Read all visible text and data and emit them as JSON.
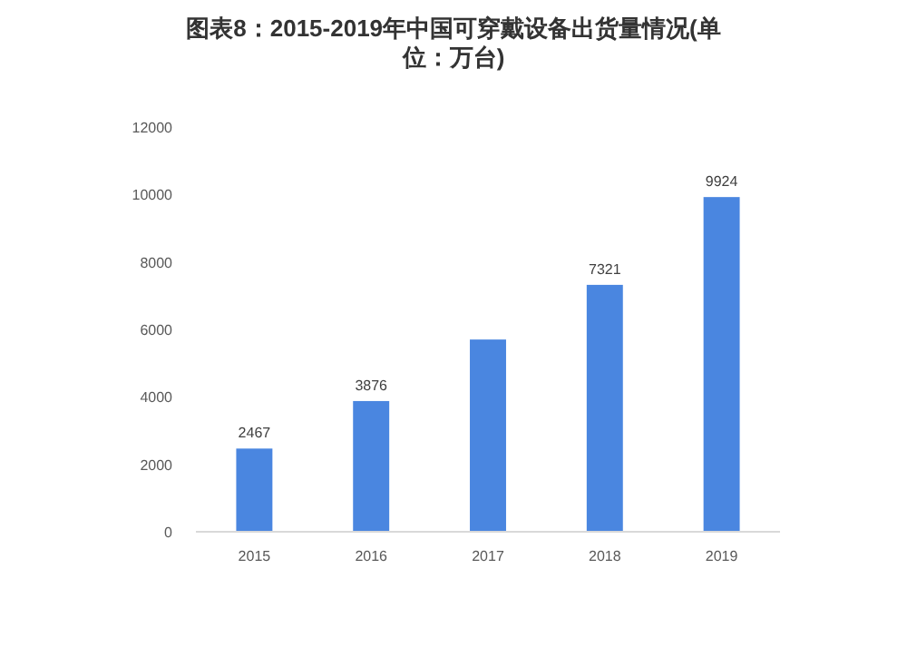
{
  "chart_data": {
    "type": "bar",
    "title": "图表8：2015-2019年中国可穿戴设备出货量情况(单位：万台)",
    "categories": [
      "2015",
      "2016",
      "2017",
      "2018",
      "2019"
    ],
    "values": [
      2467,
      3876,
      5700,
      7321,
      9924
    ],
    "value_labels": [
      "2467",
      "3876",
      null,
      "7321",
      "9924"
    ],
    "color": "#4a86e0",
    "ylim": [
      0,
      12000
    ],
    "yticks": [
      0,
      2000,
      4000,
      6000,
      8000,
      10000,
      12000
    ],
    "grid": false
  }
}
